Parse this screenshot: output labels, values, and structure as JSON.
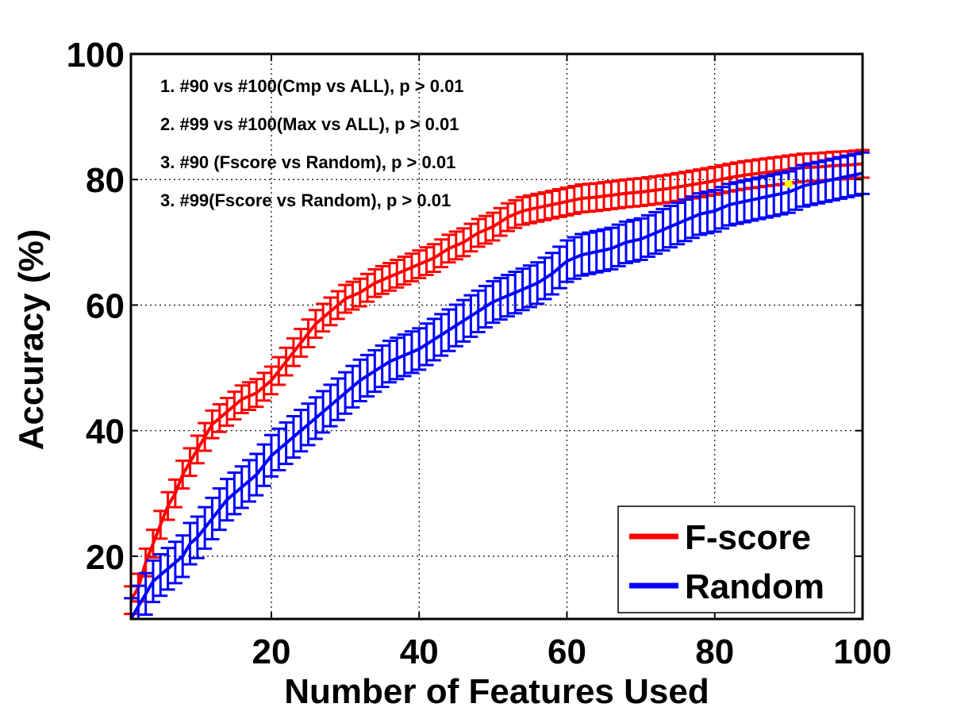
{
  "chart_data": {
    "type": "line",
    "xlabel": "Number of Features Used",
    "ylabel": "Accuracy (%)",
    "xlim": [
      1,
      100
    ],
    "ylim": [
      10,
      100
    ],
    "xticks": [
      20,
      40,
      60,
      80,
      100
    ],
    "yticks": [
      20,
      40,
      60,
      80,
      100
    ],
    "grid": true,
    "legend": {
      "placement": "bottom-right"
    },
    "annotations": [
      "1. #90 vs #100(Cmp vs ALL), p > 0.01",
      "2. #99 vs #100(Max vs ALL), p > 0.01",
      "3. #90 (Fscore vs Random), p > 0.01",
      "3. #99(Fscore vs Random), p > 0.01"
    ],
    "marker": {
      "x": 90,
      "y": 79.3,
      "color": "#ffff00"
    },
    "series": [
      {
        "name": "F-score",
        "color": "#ff0000",
        "x": [
          1,
          2,
          3,
          4,
          5,
          6,
          7,
          8,
          9,
          10,
          12,
          14,
          16,
          18,
          20,
          22,
          24,
          26,
          28,
          30,
          32,
          34,
          36,
          38,
          40,
          42,
          44,
          46,
          48,
          50,
          52,
          54,
          56,
          58,
          60,
          62,
          64,
          66,
          68,
          70,
          72,
          74,
          76,
          78,
          80,
          82,
          84,
          86,
          88,
          90,
          92,
          94,
          96,
          98,
          100
        ],
        "y": [
          13,
          15,
          19,
          22,
          25,
          28,
          30,
          33,
          35,
          37,
          41,
          43,
          45,
          46,
          48,
          51,
          54,
          57,
          59,
          61,
          62,
          63.5,
          64.5,
          65.5,
          66.5,
          67.5,
          69,
          70,
          71.5,
          72.5,
          74,
          75,
          75.5,
          76,
          76.5,
          77,
          77.2,
          77.5,
          77.8,
          78,
          78.3,
          78.6,
          79,
          79.4,
          79.8,
          80.3,
          80.7,
          81,
          81.3,
          81.6,
          81.9,
          82,
          82.2,
          82.3,
          82.5
        ],
        "err": 2.2
      },
      {
        "name": "Random",
        "color": "#0000ff",
        "x": [
          1,
          2,
          3,
          4,
          5,
          6,
          7,
          8,
          9,
          10,
          12,
          14,
          16,
          18,
          20,
          22,
          24,
          26,
          28,
          30,
          32,
          34,
          36,
          38,
          40,
          42,
          44,
          46,
          48,
          50,
          52,
          54,
          56,
          58,
          60,
          62,
          64,
          66,
          68,
          70,
          72,
          74,
          76,
          78,
          80,
          82,
          84,
          86,
          88,
          90,
          92,
          94,
          96,
          98,
          100
        ],
        "y": [
          10,
          12,
          14,
          16,
          17,
          18,
          19,
          20,
          22,
          23,
          26,
          29,
          31,
          33,
          36,
          38,
          40,
          42,
          44,
          46,
          48,
          49.5,
          51,
          52,
          53,
          54.5,
          56,
          57.5,
          59,
          60.5,
          61.5,
          62.5,
          63.5,
          65,
          67,
          68,
          68.5,
          69,
          70,
          70.5,
          71.5,
          72.5,
          73.5,
          74.5,
          75,
          76,
          76.5,
          77,
          77.5,
          78,
          79,
          79.5,
          80,
          80.5,
          81
        ],
        "err": 3.3
      }
    ]
  }
}
